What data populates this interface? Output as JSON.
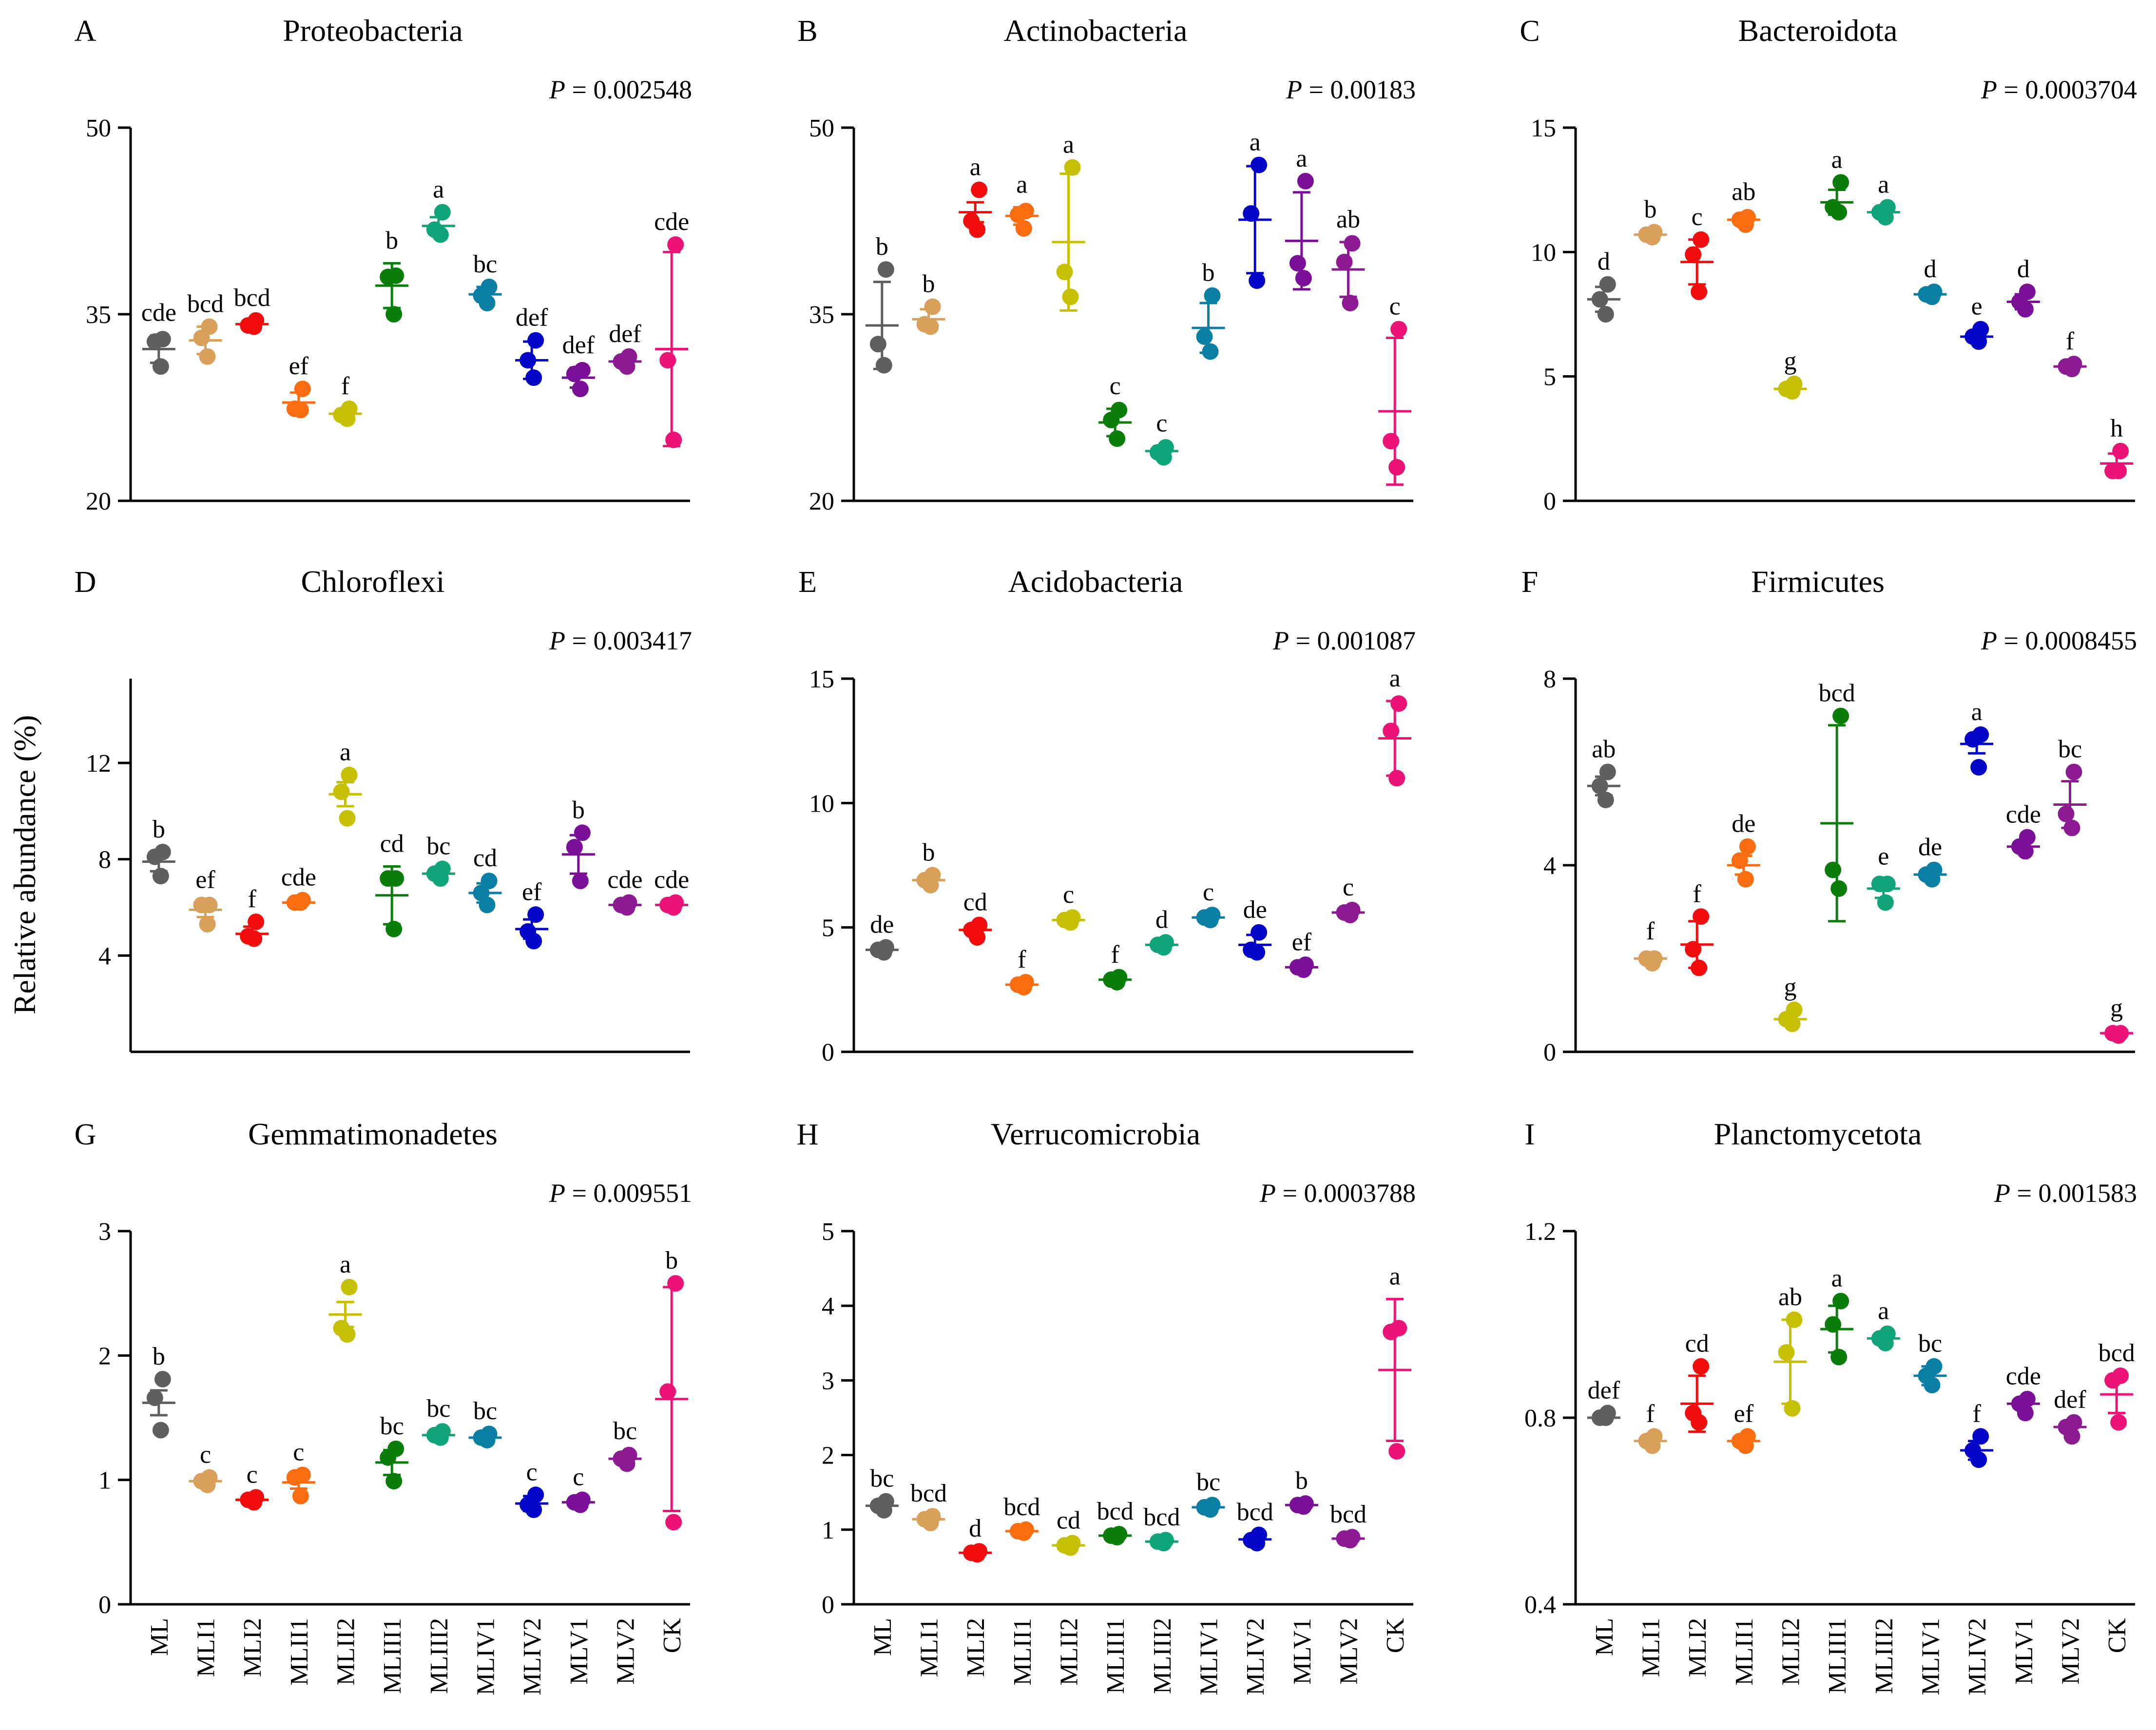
{
  "figure": {
    "y_axis_label": "Relative abundance (%)"
  },
  "categories": [
    "ML",
    "MLI1",
    "MLI2",
    "MLII1",
    "MLII2",
    "MLIII1",
    "MLIII2",
    "MLIV1",
    "MLIV2",
    "MLV1",
    "MLV2",
    "CK"
  ],
  "colors": [
    "#5f5f5f",
    "#d9a05b",
    "#f10d0d",
    "#f96d10",
    "#c6c004",
    "#0a7d0a",
    "#11a47a",
    "#0b7ea3",
    "#0505c8",
    "#7a1097",
    "#8c1a92",
    "#ec1377"
  ],
  "chart_data": [
    {
      "panel": "A",
      "type": "scatter",
      "title": "Proteobacteria",
      "p_label": "P",
      "p_value": "= 0.002548",
      "ylim": [
        20,
        50
      ],
      "yticks": [
        "20",
        "35",
        "50"
      ],
      "means": [
        32.2,
        32.9,
        34.2,
        27.9,
        27.0,
        37.3,
        42.1,
        36.6,
        31.3,
        29.9,
        31.2,
        32.2
      ],
      "sd": [
        1.1,
        1.1,
        0.3,
        0.8,
        0.4,
        1.8,
        0.7,
        0.6,
        1.5,
        0.8,
        0.3,
        7.8
      ],
      "points": [
        [
          33.0,
          32.8,
          30.8
        ],
        [
          34.0,
          33.1,
          31.6
        ],
        [
          34.5,
          34.1,
          34.0
        ],
        [
          29.0,
          27.4,
          27.3
        ],
        [
          27.4,
          26.9,
          26.6
        ],
        [
          38.1,
          38.0,
          35.0
        ],
        [
          43.2,
          41.8,
          41.4
        ],
        [
          37.2,
          36.5,
          35.9
        ],
        [
          32.9,
          31.3,
          29.9
        ],
        [
          30.5,
          30.2,
          29.0
        ],
        [
          31.6,
          31.2,
          30.8
        ],
        [
          40.6,
          31.3,
          24.9
        ]
      ],
      "letters": [
        "cde",
        "bcd",
        "bcd",
        "ef",
        "f",
        "b",
        "a",
        "bc",
        "def",
        "def",
        "def",
        "cde"
      ]
    },
    {
      "panel": "B",
      "type": "scatter",
      "title": "Actinobacteria",
      "p_label": "P",
      "p_value": "= 0.00183",
      "ylim": [
        20,
        50
      ],
      "yticks": [
        "20",
        "35",
        "50"
      ],
      "means": [
        34.1,
        34.6,
        43.2,
        42.9,
        40.8,
        26.3,
        24.0,
        33.9,
        42.6,
        40.9,
        38.6,
        27.2
      ],
      "sd": [
        3.5,
        0.8,
        0.8,
        0.7,
        5.5,
        1.1,
        0.4,
        2.0,
        4.3,
        3.9,
        2.2,
        5.9
      ],
      "points": [
        [
          38.6,
          32.6,
          30.9
        ],
        [
          35.6,
          34.2,
          34.0
        ],
        [
          45.0,
          42.5,
          41.8
        ],
        [
          43.3,
          43.0,
          41.9
        ],
        [
          46.8,
          38.4,
          36.4
        ],
        [
          27.3,
          26.5,
          25.0
        ],
        [
          24.3,
          23.9,
          23.5
        ],
        [
          36.5,
          33.2,
          32.0
        ],
        [
          47.0,
          43.1,
          37.7
        ],
        [
          45.7,
          39.1,
          37.9
        ],
        [
          40.7,
          39.2,
          35.9
        ],
        [
          33.8,
          24.8,
          22.7
        ]
      ],
      "letters": [
        "b",
        "b",
        "a",
        "a",
        "a",
        "c",
        "c",
        "b",
        "a",
        "a",
        "ab",
        "c"
      ]
    },
    {
      "panel": "C",
      "type": "scatter",
      "title": "Bacteroidota",
      "p_label": "P",
      "p_value": "= 0.0003704",
      "ylim": [
        0,
        15
      ],
      "yticks": [
        "0",
        "5",
        "10",
        "15"
      ],
      "means": [
        8.1,
        10.7,
        9.6,
        11.3,
        4.5,
        12.0,
        11.6,
        8.3,
        6.6,
        8.0,
        5.4,
        1.5
      ],
      "sd": [
        0.5,
        0.1,
        0.9,
        0.2,
        0.2,
        0.5,
        0.2,
        0.1,
        0.2,
        0.3,
        0.1,
        0.4
      ],
      "points": [
        [
          8.7,
          8.1,
          7.5
        ],
        [
          10.8,
          10.7,
          10.6
        ],
        [
          10.5,
          9.9,
          8.4
        ],
        [
          11.4,
          11.3,
          11.1
        ],
        [
          4.7,
          4.5,
          4.4
        ],
        [
          12.8,
          11.8,
          11.6
        ],
        [
          11.8,
          11.6,
          11.4
        ],
        [
          8.4,
          8.3,
          8.2
        ],
        [
          6.9,
          6.6,
          6.4
        ],
        [
          8.4,
          8.0,
          7.7
        ],
        [
          5.5,
          5.4,
          5.3
        ],
        [
          2.0,
          1.2,
          1.2
        ]
      ],
      "letters": [
        "d",
        "b",
        "c",
        "ab",
        "g",
        "a",
        "a",
        "d",
        "e",
        "d",
        "f",
        "h"
      ]
    },
    {
      "panel": "D",
      "type": "scatter",
      "title": "Chloroflexi",
      "p_label": "P",
      "p_value": "= 0.003417",
      "ylim": [
        0,
        15.5
      ],
      "yticks": [
        "4",
        "8",
        "12"
      ],
      "means": [
        7.9,
        5.9,
        4.9,
        6.2,
        10.7,
        6.5,
        7.4,
        6.6,
        5.1,
        8.2,
        6.1,
        6.1
      ],
      "sd": [
        0.4,
        0.3,
        0.3,
        0.1,
        0.5,
        1.2,
        0.2,
        0.4,
        0.4,
        0.8,
        0.1,
        0.1
      ],
      "points": [
        [
          8.3,
          8.1,
          7.3
        ],
        [
          6.1,
          6.1,
          5.3
        ],
        [
          5.4,
          4.8,
          4.7
        ],
        [
          6.3,
          6.2,
          6.2
        ],
        [
          11.5,
          10.8,
          9.7
        ],
        [
          7.2,
          7.2,
          5.1
        ],
        [
          7.6,
          7.4,
          7.2
        ],
        [
          7.1,
          6.6,
          6.1
        ],
        [
          5.7,
          5.0,
          4.6
        ],
        [
          9.1,
          8.5,
          7.1
        ],
        [
          6.2,
          6.1,
          6.0
        ],
        [
          6.2,
          6.1,
          6.0
        ]
      ],
      "letters": [
        "b",
        "ef",
        "f",
        "cde",
        "a",
        "cd",
        "bc",
        "cd",
        "ef",
        "b",
        "cde",
        "cde"
      ]
    },
    {
      "panel": "E",
      "type": "scatter",
      "title": "Acidobacteria",
      "p_label": "P",
      "p_value": "= 0.001087",
      "ylim": [
        0,
        15
      ],
      "yticks": [
        "0",
        "5",
        "10",
        "15"
      ],
      "means": [
        4.1,
        6.9,
        4.9,
        2.7,
        5.3,
        2.9,
        4.3,
        5.4,
        4.3,
        3.4,
        5.6,
        12.6
      ],
      "sd": [
        0.1,
        0.2,
        0.2,
        0.1,
        0.1,
        0.1,
        0.1,
        0.1,
        0.4,
        0.1,
        0.1,
        1.5
      ],
      "points": [
        [
          4.2,
          4.1,
          4.0
        ],
        [
          7.1,
          6.9,
          6.7
        ],
        [
          5.1,
          4.9,
          4.6
        ],
        [
          2.8,
          2.7,
          2.6
        ],
        [
          5.4,
          5.3,
          5.2
        ],
        [
          3.0,
          2.9,
          2.8
        ],
        [
          4.4,
          4.3,
          4.2
        ],
        [
          5.5,
          5.4,
          5.3
        ],
        [
          4.8,
          4.1,
          4.0
        ],
        [
          3.5,
          3.4,
          3.3
        ],
        [
          5.7,
          5.6,
          5.5
        ],
        [
          14.0,
          12.9,
          11.0
        ]
      ],
      "letters": [
        "de",
        "b",
        "cd",
        "f",
        "c",
        "f",
        "d",
        "c",
        "de",
        "ef",
        "c",
        "a"
      ]
    },
    {
      "panel": "F",
      "type": "scatter",
      "title": "Firmicutes",
      "p_label": "P",
      "p_value": "= 0.0008455",
      "ylim": [
        0,
        8
      ],
      "yticks": [
        "0",
        "4",
        "8"
      ],
      "means": [
        5.7,
        2.0,
        2.3,
        4.0,
        0.7,
        4.9,
        3.5,
        3.8,
        6.6,
        4.4,
        5.3,
        0.4
      ],
      "sd": [
        0.2,
        0.1,
        0.5,
        0.2,
        0.1,
        2.1,
        0.2,
        0.1,
        0.2,
        0.1,
        0.5,
        0.05
      ],
      "points": [
        [
          6.0,
          5.7,
          5.4
        ],
        [
          2.0,
          2.0,
          1.9
        ],
        [
          2.9,
          2.2,
          1.8
        ],
        [
          4.4,
          4.1,
          3.7
        ],
        [
          0.9,
          0.7,
          0.6
        ],
        [
          7.2,
          3.9,
          3.5
        ],
        [
          3.6,
          3.6,
          3.2
        ],
        [
          3.9,
          3.8,
          3.7
        ],
        [
          6.8,
          6.7,
          6.1
        ],
        [
          4.6,
          4.4,
          4.3
        ],
        [
          6.0,
          5.1,
          4.8
        ],
        [
          0.4,
          0.4,
          0.35
        ]
      ],
      "letters": [
        "ab",
        "f",
        "f",
        "de",
        "g",
        "bcd",
        "e",
        "de",
        "a",
        "cde",
        "bc",
        "g"
      ]
    },
    {
      "panel": "G",
      "type": "scatter",
      "title": "Gemmatimonadetes",
      "p_label": "P",
      "p_value": "= 0.009551",
      "ylim": [
        0,
        3
      ],
      "yticks": [
        "0",
        "1",
        "2",
        "3"
      ],
      "means": [
        1.62,
        0.99,
        0.84,
        0.98,
        2.33,
        1.14,
        1.36,
        1.34,
        0.81,
        0.82,
        1.17,
        1.65
      ],
      "sd": [
        0.1,
        0.03,
        0.02,
        0.05,
        0.1,
        0.1,
        0.02,
        0.03,
        0.06,
        0.02,
        0.04,
        0.9
      ],
      "points": [
        [
          1.81,
          1.66,
          1.4
        ],
        [
          1.02,
          0.99,
          0.96
        ],
        [
          0.86,
          0.84,
          0.82
        ],
        [
          1.04,
          1.02,
          0.87
        ],
        [
          2.55,
          2.22,
          2.17
        ],
        [
          1.25,
          1.18,
          0.99
        ],
        [
          1.39,
          1.36,
          1.34
        ],
        [
          1.37,
          1.34,
          1.32
        ],
        [
          0.88,
          0.8,
          0.76
        ],
        [
          0.84,
          0.82,
          0.8
        ],
        [
          1.2,
          1.17,
          1.13
        ],
        [
          2.58,
          1.71,
          0.66
        ]
      ],
      "letters": [
        "b",
        "c",
        "c",
        "c",
        "a",
        "bc",
        "bc",
        "bc",
        "c",
        "c",
        "bc",
        "b"
      ]
    },
    {
      "panel": "H",
      "type": "scatter",
      "title": "Verrucomicrobia",
      "p_label": "P",
      "p_value": "= 0.0003788",
      "ylim": [
        0,
        5
      ],
      "yticks": [
        "0",
        "1",
        "2",
        "3",
        "4",
        "5"
      ],
      "means": [
        1.32,
        1.14,
        0.69,
        0.98,
        0.79,
        0.92,
        0.84,
        1.3,
        0.87,
        1.33,
        0.88,
        3.14
      ],
      "sd": [
        0.05,
        0.04,
        0.02,
        0.02,
        0.03,
        0.02,
        0.02,
        0.03,
        0.06,
        0.02,
        0.02,
        0.95
      ],
      "points": [
        [
          1.38,
          1.32,
          1.26
        ],
        [
          1.18,
          1.14,
          1.09
        ],
        [
          0.71,
          0.69,
          0.67
        ],
        [
          1.0,
          0.98,
          0.96
        ],
        [
          0.82,
          0.79,
          0.76
        ],
        [
          0.94,
          0.92,
          0.9
        ],
        [
          0.86,
          0.84,
          0.82
        ],
        [
          1.33,
          1.3,
          1.27
        ],
        [
          0.93,
          0.86,
          0.82
        ],
        [
          1.35,
          1.33,
          1.31
        ],
        [
          0.9,
          0.88,
          0.86
        ],
        [
          3.7,
          3.65,
          2.05
        ]
      ],
      "letters": [
        "bc",
        "bcd",
        "d",
        "bcd",
        "cd",
        "bcd",
        "bcd",
        "bc",
        "bcd",
        "b",
        "bcd",
        "a"
      ]
    },
    {
      "panel": "I",
      "type": "scatter",
      "title": "Planctomycetota",
      "p_label": "P",
      "p_value": "= 0.001583",
      "ylim": [
        0.4,
        1.2
      ],
      "yticks": [
        "0.4",
        "0.8",
        "1.2"
      ],
      "means": [
        0.8,
        0.75,
        0.83,
        0.75,
        0.92,
        0.99,
        0.97,
        0.89,
        0.73,
        0.83,
        0.78,
        0.85
      ],
      "sd": [
        0.005,
        0.005,
        0.06,
        0.005,
        0.09,
        0.05,
        0.01,
        0.02,
        0.02,
        0.01,
        0.01,
        0.04
      ],
      "points": [
        [
          0.81,
          0.8,
          0.8
        ],
        [
          0.76,
          0.75,
          0.74
        ],
        [
          0.91,
          0.81,
          0.79
        ],
        [
          0.76,
          0.75,
          0.74
        ],
        [
          1.01,
          0.94,
          0.82
        ],
        [
          1.05,
          1.0,
          0.93
        ],
        [
          0.98,
          0.97,
          0.96
        ],
        [
          0.91,
          0.89,
          0.87
        ],
        [
          0.76,
          0.73,
          0.71
        ],
        [
          0.84,
          0.83,
          0.81
        ],
        [
          0.79,
          0.78,
          0.76
        ],
        [
          0.89,
          0.88,
          0.79
        ]
      ],
      "letters": [
        "def",
        "f",
        "cd",
        "ef",
        "ab",
        "a",
        "a",
        "bc",
        "f",
        "cde",
        "def",
        "bcd"
      ]
    }
  ]
}
